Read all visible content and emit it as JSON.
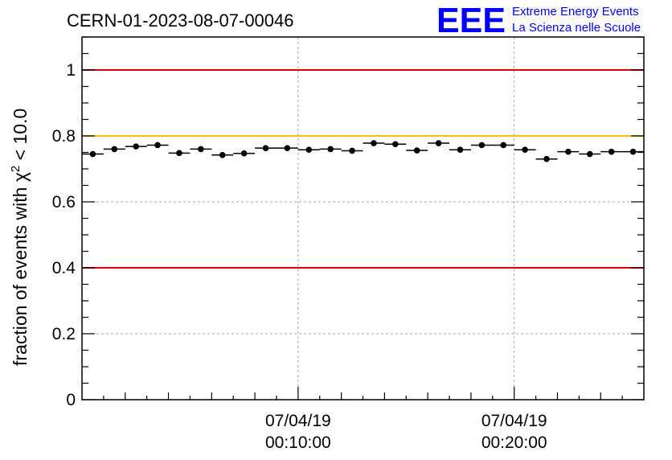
{
  "chart_data": {
    "type": "scatter",
    "title": "CERN-01-2023-08-07-00046",
    "ylabel_main": "fraction of events with ",
    "ylabel_chi": "χ",
    "ylabel_sup": "2",
    "ylabel_tail": " < 10.0",
    "xlim": [
      0,
      26
    ],
    "ylim": [
      0,
      1.1
    ],
    "y_ticks": [
      0,
      0.2,
      0.4,
      0.6,
      0.8,
      1
    ],
    "y_tick_labels": [
      "0",
      "0.2",
      "0.4",
      "0.6",
      "0.8",
      "1"
    ],
    "x_labeled_ticks": [
      {
        "x": 10,
        "date": "07/04/19",
        "time": "00:10:00"
      },
      {
        "x": 20,
        "date": "07/04/19",
        "time": "00:20:00"
      }
    ],
    "x": [
      0.5,
      1.5,
      2.5,
      3.5,
      4.5,
      5.5,
      6.5,
      7.5,
      8.5,
      9.5,
      10.5,
      11.5,
      12.5,
      13.5,
      14.5,
      15.5,
      16.5,
      17.5,
      18.5,
      19.5,
      20.5,
      21.5,
      22.5,
      23.5,
      24.5,
      25.5
    ],
    "values": [
      0.745,
      0.76,
      0.768,
      0.772,
      0.748,
      0.76,
      0.742,
      0.747,
      0.763,
      0.763,
      0.758,
      0.76,
      0.755,
      0.778,
      0.775,
      0.756,
      0.778,
      0.758,
      0.772,
      0.772,
      0.758,
      0.73,
      0.752,
      0.745,
      0.752,
      0.752
    ],
    "x_error": 0.5,
    "reference_lines": [
      {
        "y": 1.0,
        "color": "#e00000"
      },
      {
        "y": 0.8,
        "color": "#ffc000"
      },
      {
        "y": 0.4,
        "color": "#e00000"
      }
    ],
    "grid": true
  },
  "logo": {
    "mark": "EEE",
    "line1": "Extreme Energy Events",
    "line2": "La Scienza nelle Scuole",
    "color": "#0000ff"
  }
}
